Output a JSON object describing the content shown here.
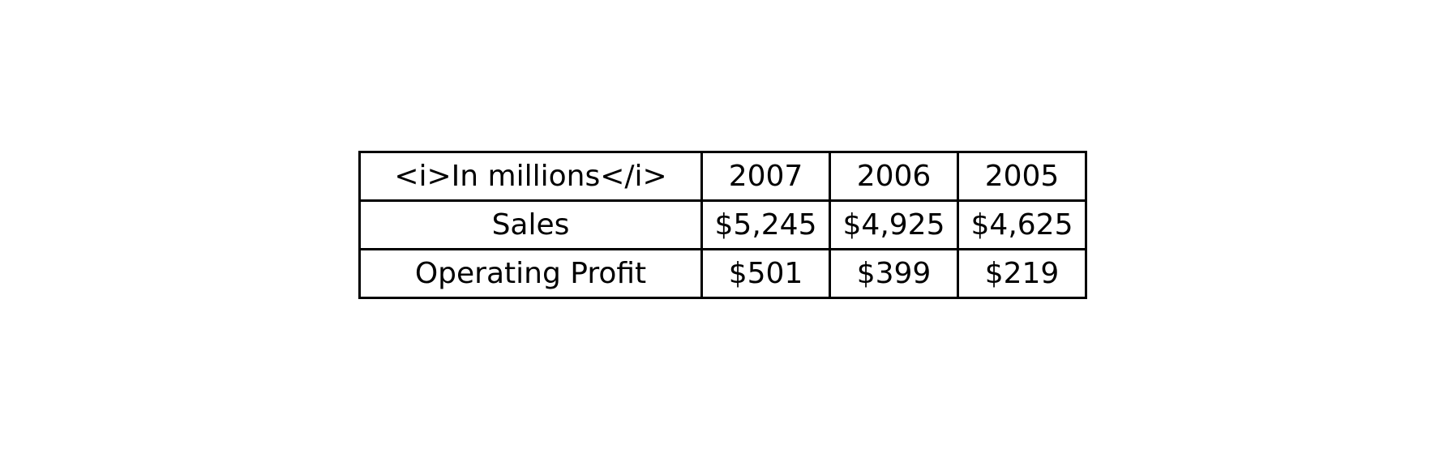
{
  "chart_data": {
    "type": "table",
    "columns": [
      "<i>In millions</i>",
      "2007",
      "2006",
      "2005"
    ],
    "rows": [
      [
        "Sales",
        "$5,245",
        "$4,925",
        "$4,625"
      ],
      [
        "Operating Profit",
        "$501",
        "$399",
        "$219"
      ]
    ]
  }
}
